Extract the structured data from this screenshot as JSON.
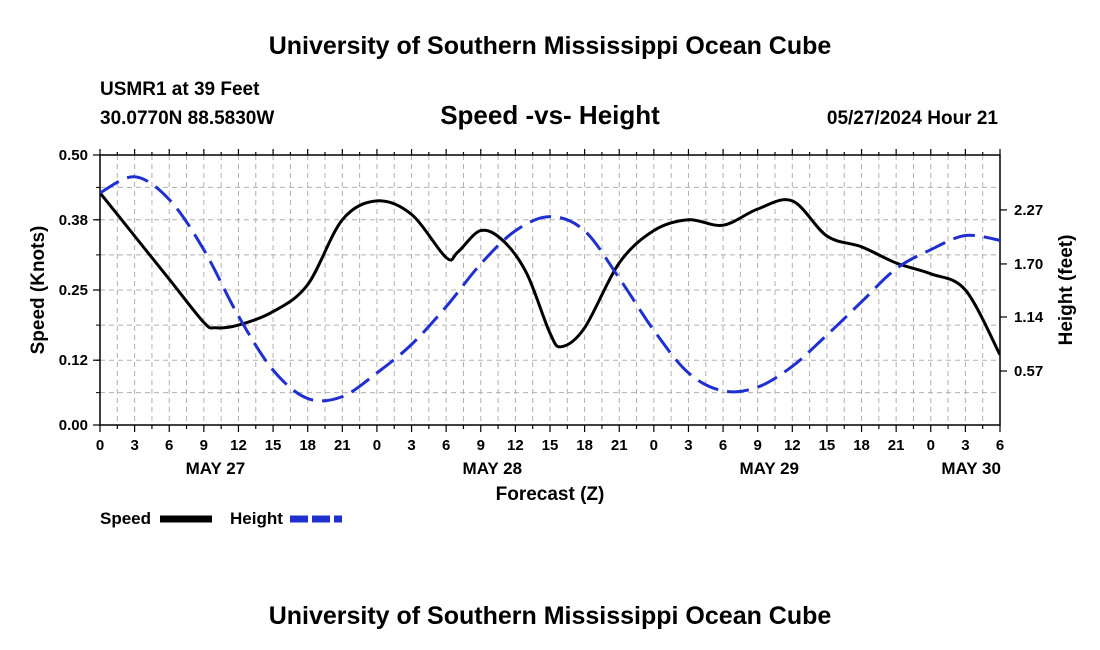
{
  "header": {
    "main_title": "University of Southern Mississippi Ocean Cube",
    "station": "USMR1 at 39 Feet",
    "coords": "30.0770N  88.5830W",
    "chart_title": "Speed -vs- Height",
    "datetime": "05/27/2024 Hour 21"
  },
  "footer": {
    "title": "University of Southern Mississippi Ocean Cube"
  },
  "colors": {
    "speed": "#000000",
    "height": "#1f2fd0",
    "grid": "#b0b0b0"
  },
  "chart_data": {
    "type": "line",
    "xlabel": "Forecast (Z)",
    "ylabel_left": "Speed (Knots)",
    "ylabel_right": "Height (feet)",
    "x_range_hours": [
      0,
      78
    ],
    "x_tick_labels": [
      "0",
      "3",
      "6",
      "9",
      "12",
      "15",
      "18",
      "21",
      "0",
      "3",
      "6",
      "9",
      "12",
      "15",
      "18",
      "21",
      "0",
      "3",
      "6",
      "9",
      "12",
      "15",
      "18",
      "21",
      "0",
      "3",
      "6"
    ],
    "date_labels": [
      {
        "label": "MAY 27",
        "hour": 10
      },
      {
        "label": "MAY 28",
        "hour": 34
      },
      {
        "label": "MAY 29",
        "hour": 58
      },
      {
        "label": "MAY 30",
        "hour": 75.5
      }
    ],
    "y_left": {
      "range": [
        0.0,
        0.5
      ],
      "ticks": [
        0.0,
        0.12,
        0.25,
        0.38,
        0.5
      ],
      "tick_labels": [
        "0.00",
        "0.12",
        "0.25",
        "0.38",
        "0.50"
      ]
    },
    "y_right": {
      "range": [
        0.0,
        2.85
      ],
      "ticks": [
        0.57,
        1.14,
        1.7,
        2.27
      ],
      "tick_labels": [
        "0.57",
        "1.14",
        "1.70",
        "2.27"
      ]
    },
    "series": [
      {
        "name": "Speed",
        "axis": "left",
        "style": "solid",
        "x": [
          0,
          3,
          6,
          9,
          10,
          12,
          15,
          18,
          21,
          24,
          27,
          30,
          31,
          33,
          35,
          37,
          39,
          40,
          42,
          45,
          48,
          51,
          54,
          57,
          60,
          63,
          66,
          69,
          72,
          75,
          78
        ],
        "y": [
          0.43,
          0.35,
          0.27,
          0.19,
          0.18,
          0.185,
          0.21,
          0.26,
          0.38,
          0.415,
          0.39,
          0.31,
          0.32,
          0.36,
          0.34,
          0.28,
          0.17,
          0.145,
          0.18,
          0.3,
          0.36,
          0.38,
          0.37,
          0.4,
          0.415,
          0.35,
          0.33,
          0.3,
          0.28,
          0.25,
          0.13
        ]
      },
      {
        "name": "Height",
        "axis": "right",
        "style": "dashed",
        "x": [
          0,
          3,
          6,
          9,
          12,
          15,
          18,
          21,
          24,
          27,
          30,
          33,
          36,
          39,
          42,
          45,
          48,
          51,
          54,
          57,
          60,
          63,
          66,
          69,
          72,
          75,
          78
        ],
        "y": [
          2.45,
          2.62,
          2.38,
          1.85,
          1.15,
          0.58,
          0.28,
          0.3,
          0.55,
          0.85,
          1.25,
          1.7,
          2.05,
          2.2,
          2.05,
          1.55,
          1.0,
          0.55,
          0.36,
          0.4,
          0.62,
          0.95,
          1.3,
          1.65,
          1.85,
          2.0,
          1.95
        ]
      }
    ],
    "legend": {
      "position": "bottom-left",
      "entries": [
        "Speed",
        "Height"
      ]
    }
  }
}
